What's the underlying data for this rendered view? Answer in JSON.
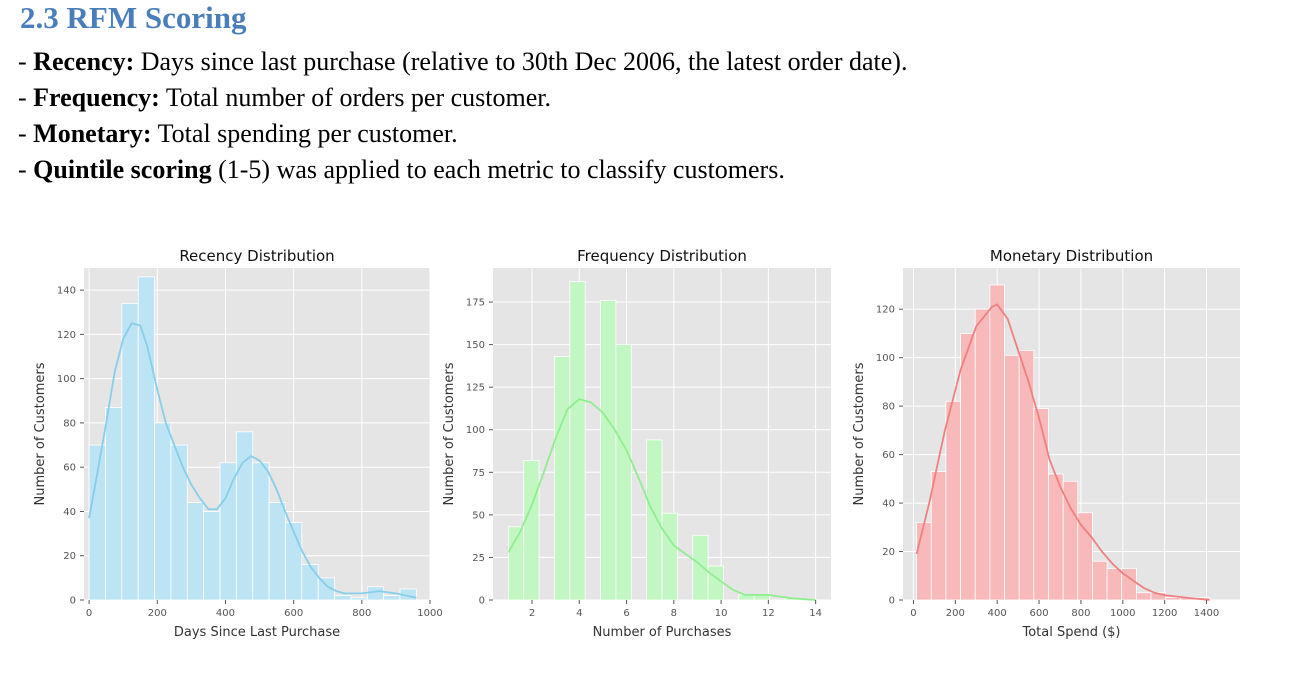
{
  "heading": "2.3 RFM Scoring",
  "bullets": [
    {
      "dash": "- ",
      "term": "Recency:",
      "text": " Days since last purchase (relative to 30th Dec 2006, the latest order date)."
    },
    {
      "dash": "- ",
      "term": "Frequency:",
      "text": " Total number of orders per customer."
    },
    {
      "dash": "- ",
      "term": "Monetary:",
      "text": " Total spending per customer."
    },
    {
      "dash": "- ",
      "term": "Quintile scoring",
      "text": " (1-5) was applied to each metric to classify customers."
    }
  ],
  "chart_data": [
    {
      "type": "bar",
      "title": "Recency Distribution",
      "xlabel": "Days Since Last Purchase",
      "ylabel": "Number of Customers",
      "color": "#87ceeb",
      "xlim": [
        -15,
        1000
      ],
      "ylim": [
        0,
        150
      ],
      "xticks": [
        0,
        200,
        400,
        600,
        800,
        1000
      ],
      "yticks": [
        0,
        20,
        40,
        60,
        80,
        100,
        120,
        140
      ],
      "bins": [
        {
          "x0": 0,
          "x1": 48,
          "value": 70
        },
        {
          "x0": 48,
          "x1": 96,
          "value": 87
        },
        {
          "x0": 96,
          "x1": 144,
          "value": 134
        },
        {
          "x0": 144,
          "x1": 192,
          "value": 146
        },
        {
          "x0": 192,
          "x1": 240,
          "value": 80
        },
        {
          "x0": 240,
          "x1": 288,
          "value": 70
        },
        {
          "x0": 288,
          "x1": 336,
          "value": 44
        },
        {
          "x0": 336,
          "x1": 384,
          "value": 40
        },
        {
          "x0": 384,
          "x1": 432,
          "value": 62
        },
        {
          "x0": 432,
          "x1": 480,
          "value": 76
        },
        {
          "x0": 480,
          "x1": 528,
          "value": 62
        },
        {
          "x0": 528,
          "x1": 576,
          "value": 44
        },
        {
          "x0": 576,
          "x1": 624,
          "value": 35
        },
        {
          "x0": 624,
          "x1": 672,
          "value": 16
        },
        {
          "x0": 672,
          "x1": 720,
          "value": 10
        },
        {
          "x0": 720,
          "x1": 768,
          "value": 2
        },
        {
          "x0": 768,
          "x1": 816,
          "value": 1
        },
        {
          "x0": 816,
          "x1": 864,
          "value": 6
        },
        {
          "x0": 864,
          "x1": 912,
          "value": 2
        },
        {
          "x0": 912,
          "x1": 960,
          "value": 5
        }
      ],
      "kde": [
        [
          0,
          37
        ],
        [
          25,
          58
        ],
        [
          50,
          80
        ],
        [
          75,
          103
        ],
        [
          100,
          118
        ],
        [
          125,
          125
        ],
        [
          150,
          124
        ],
        [
          170,
          115
        ],
        [
          200,
          95
        ],
        [
          225,
          80
        ],
        [
          250,
          70
        ],
        [
          275,
          60
        ],
        [
          300,
          52
        ],
        [
          325,
          46
        ],
        [
          350,
          41
        ],
        [
          375,
          41
        ],
        [
          400,
          46
        ],
        [
          425,
          55
        ],
        [
          450,
          62
        ],
        [
          475,
          65
        ],
        [
          500,
          63
        ],
        [
          525,
          58
        ],
        [
          550,
          50
        ],
        [
          575,
          40
        ],
        [
          600,
          31
        ],
        [
          625,
          22
        ],
        [
          650,
          15
        ],
        [
          675,
          10
        ],
        [
          700,
          6
        ],
        [
          725,
          4
        ],
        [
          750,
          3
        ],
        [
          800,
          3
        ],
        [
          850,
          4
        ],
        [
          900,
          3
        ],
        [
          960,
          1
        ]
      ]
    },
    {
      "type": "bar",
      "title": "Frequency Distribution",
      "xlabel": "Number of Purchases",
      "ylabel": "Number of Customers",
      "color": "#90ee90",
      "xlim": [
        0.35,
        14.65
      ],
      "ylim": [
        0,
        195
      ],
      "xticks": [
        2,
        4,
        6,
        8,
        10,
        12,
        14
      ],
      "yticks": [
        0,
        25,
        50,
        75,
        100,
        125,
        150,
        175
      ],
      "bins": [
        {
          "x0": 1,
          "x1": 1.65,
          "value": 43
        },
        {
          "x0": 1.65,
          "x1": 2.3,
          "value": 82
        },
        {
          "x0": 2.95,
          "x1": 3.6,
          "value": 143
        },
        {
          "x0": 3.6,
          "x1": 4.25,
          "value": 187
        },
        {
          "x0": 4.9,
          "x1": 5.55,
          "value": 176
        },
        {
          "x0": 5.55,
          "x1": 6.2,
          "value": 150
        },
        {
          "x0": 6.85,
          "x1": 7.5,
          "value": 94
        },
        {
          "x0": 7.5,
          "x1": 8.15,
          "value": 51
        },
        {
          "x0": 8.8,
          "x1": 9.45,
          "value": 38
        },
        {
          "x0": 9.45,
          "x1": 10.1,
          "value": 20
        },
        {
          "x0": 10.75,
          "x1": 11.4,
          "value": 3
        },
        {
          "x0": 11.4,
          "x1": 12.05,
          "value": 3
        },
        {
          "x0": 12.7,
          "x1": 13.35,
          "value": 1
        }
      ],
      "kde": [
        [
          1,
          28
        ],
        [
          1.5,
          40
        ],
        [
          2,
          56
        ],
        [
          2.5,
          75
        ],
        [
          3,
          95
        ],
        [
          3.5,
          112
        ],
        [
          4,
          118
        ],
        [
          4.5,
          116
        ],
        [
          5,
          110
        ],
        [
          5.5,
          100
        ],
        [
          6,
          88
        ],
        [
          6.5,
          72
        ],
        [
          7,
          55
        ],
        [
          7.5,
          42
        ],
        [
          8,
          32
        ],
        [
          8.5,
          27
        ],
        [
          9,
          22
        ],
        [
          9.5,
          16
        ],
        [
          10,
          11
        ],
        [
          10.5,
          6
        ],
        [
          11,
          3
        ],
        [
          11.5,
          3
        ],
        [
          12,
          3
        ],
        [
          12.5,
          2
        ],
        [
          13,
          1
        ],
        [
          14,
          0
        ]
      ]
    },
    {
      "type": "bar",
      "title": "Monetary Distribution",
      "xlabel": "Total Spend ($)",
      "ylabel": "Number of Customers",
      "color": "#f08080",
      "xlim": [
        -50,
        1560
      ],
      "ylim": [
        0,
        137
      ],
      "xticks": [
        0,
        200,
        400,
        600,
        800,
        1000,
        1200,
        1400
      ],
      "yticks": [
        0,
        20,
        40,
        60,
        80,
        100,
        120
      ],
      "bins": [
        {
          "x0": 15,
          "x1": 85,
          "value": 32
        },
        {
          "x0": 85,
          "x1": 155,
          "value": 53
        },
        {
          "x0": 155,
          "x1": 225,
          "value": 82
        },
        {
          "x0": 225,
          "x1": 295,
          "value": 110
        },
        {
          "x0": 295,
          "x1": 365,
          "value": 120
        },
        {
          "x0": 365,
          "x1": 435,
          "value": 130
        },
        {
          "x0": 435,
          "x1": 505,
          "value": 101
        },
        {
          "x0": 505,
          "x1": 575,
          "value": 103
        },
        {
          "x0": 575,
          "x1": 645,
          "value": 79
        },
        {
          "x0": 645,
          "x1": 715,
          "value": 52
        },
        {
          "x0": 715,
          "x1": 785,
          "value": 49
        },
        {
          "x0": 785,
          "x1": 855,
          "value": 36
        },
        {
          "x0": 855,
          "x1": 925,
          "value": 16
        },
        {
          "x0": 925,
          "x1": 995,
          "value": 13
        },
        {
          "x0": 995,
          "x1": 1065,
          "value": 13
        },
        {
          "x0": 1065,
          "x1": 1135,
          "value": 3
        },
        {
          "x0": 1135,
          "x1": 1205,
          "value": 3
        },
        {
          "x0": 1205,
          "x1": 1275,
          "value": 1
        },
        {
          "x0": 1275,
          "x1": 1345,
          "value": 1
        },
        {
          "x0": 1345,
          "x1": 1415,
          "value": 1
        }
      ],
      "kde": [
        [
          15,
          19
        ],
        [
          75,
          40
        ],
        [
          150,
          70
        ],
        [
          225,
          95
        ],
        [
          300,
          113
        ],
        [
          375,
          121
        ],
        [
          400,
          122
        ],
        [
          450,
          116
        ],
        [
          500,
          103
        ],
        [
          550,
          90
        ],
        [
          600,
          75
        ],
        [
          650,
          58
        ],
        [
          700,
          47
        ],
        [
          750,
          38
        ],
        [
          800,
          31
        ],
        [
          850,
          26
        ],
        [
          900,
          20
        ],
        [
          950,
          15
        ],
        [
          1000,
          11
        ],
        [
          1050,
          8
        ],
        [
          1100,
          5
        ],
        [
          1150,
          3
        ],
        [
          1200,
          2
        ],
        [
          1300,
          1
        ],
        [
          1415,
          0
        ]
      ]
    }
  ]
}
